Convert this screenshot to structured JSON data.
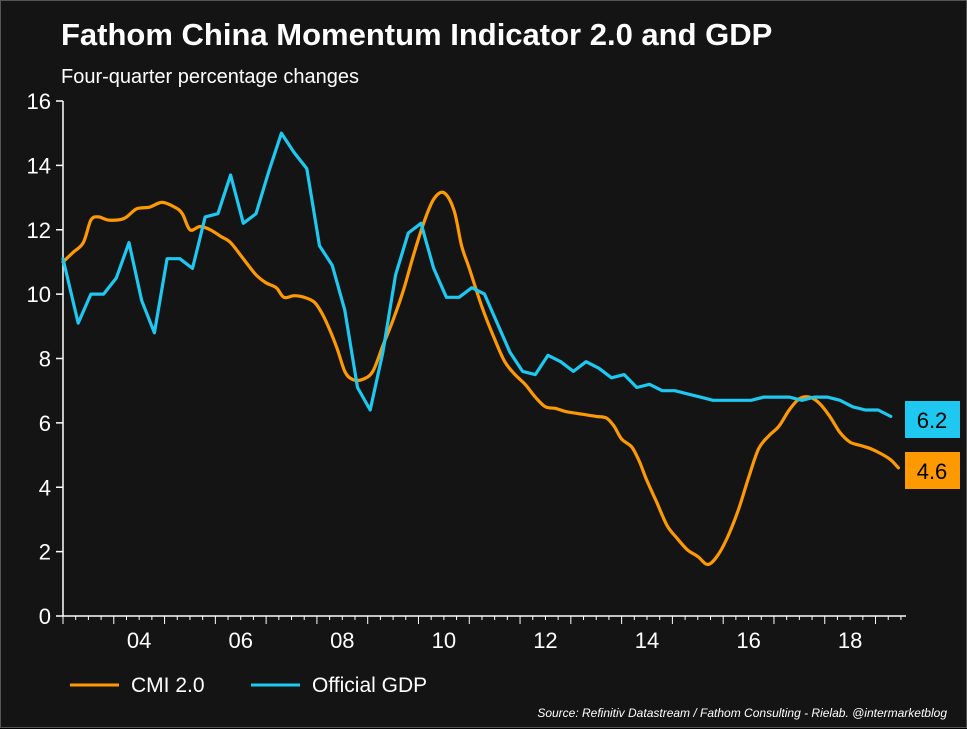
{
  "chart_data": {
    "type": "line",
    "title": "Fathom China Momentum Indicator 2.0 and GDP",
    "subtitle": "Four-quarter percentage changes",
    "xlabel": "",
    "ylabel": "",
    "xlim": [
      2003.0,
      2019.6
    ],
    "ylim": [
      0,
      16
    ],
    "y_ticks": [
      0,
      2,
      4,
      6,
      8,
      10,
      12,
      14,
      16
    ],
    "x_tick_values": [
      2004,
      2006,
      2008,
      2010,
      2012,
      2014,
      2016,
      2018
    ],
    "x_tick_labels": [
      "04",
      "06",
      "08",
      "10",
      "12",
      "14",
      "16",
      "18"
    ],
    "grid": false,
    "legend_position": "bottom-left",
    "series": [
      {
        "name": "CMI 2.0",
        "color": "#FF9900",
        "end_label": "4.6",
        "points": [
          [
            2003.0,
            11.0
          ],
          [
            2003.2,
            11.3
          ],
          [
            2003.4,
            11.6
          ],
          [
            2003.55,
            12.3
          ],
          [
            2003.7,
            12.4
          ],
          [
            2003.9,
            12.3
          ],
          [
            2004.2,
            12.35
          ],
          [
            2004.45,
            12.65
          ],
          [
            2004.7,
            12.7
          ],
          [
            2004.95,
            12.85
          ],
          [
            2005.2,
            12.7
          ],
          [
            2005.35,
            12.5
          ],
          [
            2005.5,
            12.0
          ],
          [
            2005.7,
            12.1
          ],
          [
            2005.9,
            12.0
          ],
          [
            2006.1,
            11.8
          ],
          [
            2006.3,
            11.6
          ],
          [
            2006.55,
            11.1
          ],
          [
            2006.8,
            10.6
          ],
          [
            2007.0,
            10.35
          ],
          [
            2007.2,
            10.2
          ],
          [
            2007.35,
            9.9
          ],
          [
            2007.55,
            9.95
          ],
          [
            2007.75,
            9.9
          ],
          [
            2007.95,
            9.75
          ],
          [
            2008.1,
            9.4
          ],
          [
            2008.25,
            8.9
          ],
          [
            2008.4,
            8.3
          ],
          [
            2008.55,
            7.6
          ],
          [
            2008.7,
            7.35
          ],
          [
            2008.9,
            7.35
          ],
          [
            2009.1,
            7.6
          ],
          [
            2009.3,
            8.4
          ],
          [
            2009.5,
            9.2
          ],
          [
            2009.7,
            10.1
          ],
          [
            2009.9,
            11.2
          ],
          [
            2010.1,
            12.2
          ],
          [
            2010.3,
            12.95
          ],
          [
            2010.5,
            13.15
          ],
          [
            2010.7,
            12.6
          ],
          [
            2010.85,
            11.5
          ],
          [
            2011.0,
            10.8
          ],
          [
            2011.25,
            9.6
          ],
          [
            2011.5,
            8.6
          ],
          [
            2011.7,
            7.9
          ],
          [
            2011.9,
            7.5
          ],
          [
            2012.1,
            7.2
          ],
          [
            2012.3,
            6.8
          ],
          [
            2012.5,
            6.5
          ],
          [
            2012.7,
            6.45
          ],
          [
            2012.9,
            6.35
          ],
          [
            2013.1,
            6.3
          ],
          [
            2013.3,
            6.25
          ],
          [
            2013.5,
            6.2
          ],
          [
            2013.7,
            6.15
          ],
          [
            2013.85,
            5.9
          ],
          [
            2014.0,
            5.5
          ],
          [
            2014.2,
            5.25
          ],
          [
            2014.35,
            4.8
          ],
          [
            2014.5,
            4.2
          ],
          [
            2014.7,
            3.5
          ],
          [
            2014.9,
            2.8
          ],
          [
            2015.1,
            2.4
          ],
          [
            2015.3,
            2.05
          ],
          [
            2015.5,
            1.85
          ],
          [
            2015.7,
            1.6
          ],
          [
            2015.9,
            1.9
          ],
          [
            2016.1,
            2.5
          ],
          [
            2016.3,
            3.3
          ],
          [
            2016.5,
            4.3
          ],
          [
            2016.7,
            5.2
          ],
          [
            2016.9,
            5.6
          ],
          [
            2017.1,
            5.9
          ],
          [
            2017.3,
            6.4
          ],
          [
            2017.5,
            6.75
          ],
          [
            2017.7,
            6.8
          ],
          [
            2017.9,
            6.6
          ],
          [
            2018.1,
            6.2
          ],
          [
            2018.3,
            5.7
          ],
          [
            2018.5,
            5.4
          ],
          [
            2018.7,
            5.3
          ],
          [
            2018.9,
            5.2
          ],
          [
            2019.1,
            5.05
          ],
          [
            2019.3,
            4.85
          ],
          [
            2019.45,
            4.6
          ]
        ]
      },
      {
        "name": "Official GDP",
        "color": "#1EC8F0",
        "end_label": "6.2",
        "points": [
          [
            2003.0,
            11.1
          ],
          [
            2003.3,
            9.1
          ],
          [
            2003.55,
            10.0
          ],
          [
            2003.8,
            10.0
          ],
          [
            2004.05,
            10.5
          ],
          [
            2004.3,
            11.6
          ],
          [
            2004.55,
            9.8
          ],
          [
            2004.8,
            8.8
          ],
          [
            2005.05,
            11.1
          ],
          [
            2005.3,
            11.1
          ],
          [
            2005.55,
            10.8
          ],
          [
            2005.8,
            12.4
          ],
          [
            2006.05,
            12.5
          ],
          [
            2006.3,
            13.7
          ],
          [
            2006.55,
            12.2
          ],
          [
            2006.8,
            12.5
          ],
          [
            2007.05,
            13.8
          ],
          [
            2007.3,
            15.0
          ],
          [
            2007.55,
            14.4
          ],
          [
            2007.8,
            13.9
          ],
          [
            2008.05,
            11.5
          ],
          [
            2008.3,
            10.9
          ],
          [
            2008.55,
            9.5
          ],
          [
            2008.8,
            7.1
          ],
          [
            2009.05,
            6.4
          ],
          [
            2009.3,
            8.2
          ],
          [
            2009.55,
            10.6
          ],
          [
            2009.8,
            11.9
          ],
          [
            2010.05,
            12.2
          ],
          [
            2010.3,
            10.8
          ],
          [
            2010.55,
            9.9
          ],
          [
            2010.8,
            9.9
          ],
          [
            2011.05,
            10.2
          ],
          [
            2011.3,
            10.0
          ],
          [
            2011.55,
            9.1
          ],
          [
            2011.8,
            8.2
          ],
          [
            2012.05,
            7.6
          ],
          [
            2012.3,
            7.5
          ],
          [
            2012.55,
            8.1
          ],
          [
            2012.8,
            7.9
          ],
          [
            2013.05,
            7.6
          ],
          [
            2013.3,
            7.9
          ],
          [
            2013.55,
            7.7
          ],
          [
            2013.8,
            7.4
          ],
          [
            2014.05,
            7.5
          ],
          [
            2014.3,
            7.1
          ],
          [
            2014.55,
            7.2
          ],
          [
            2014.8,
            7.0
          ],
          [
            2015.05,
            7.0
          ],
          [
            2015.3,
            6.9
          ],
          [
            2015.55,
            6.8
          ],
          [
            2015.8,
            6.7
          ],
          [
            2016.05,
            6.7
          ],
          [
            2016.3,
            6.7
          ],
          [
            2016.55,
            6.7
          ],
          [
            2016.8,
            6.8
          ],
          [
            2017.05,
            6.8
          ],
          [
            2017.3,
            6.8
          ],
          [
            2017.55,
            6.7
          ],
          [
            2017.8,
            6.8
          ],
          [
            2018.05,
            6.8
          ],
          [
            2018.3,
            6.7
          ],
          [
            2018.55,
            6.5
          ],
          [
            2018.8,
            6.4
          ],
          [
            2019.05,
            6.4
          ],
          [
            2019.3,
            6.2
          ]
        ]
      }
    ]
  },
  "source_note": "Source: Refinitiv Datastream / Fathom Consulting - Rielab. @intermarketblog"
}
